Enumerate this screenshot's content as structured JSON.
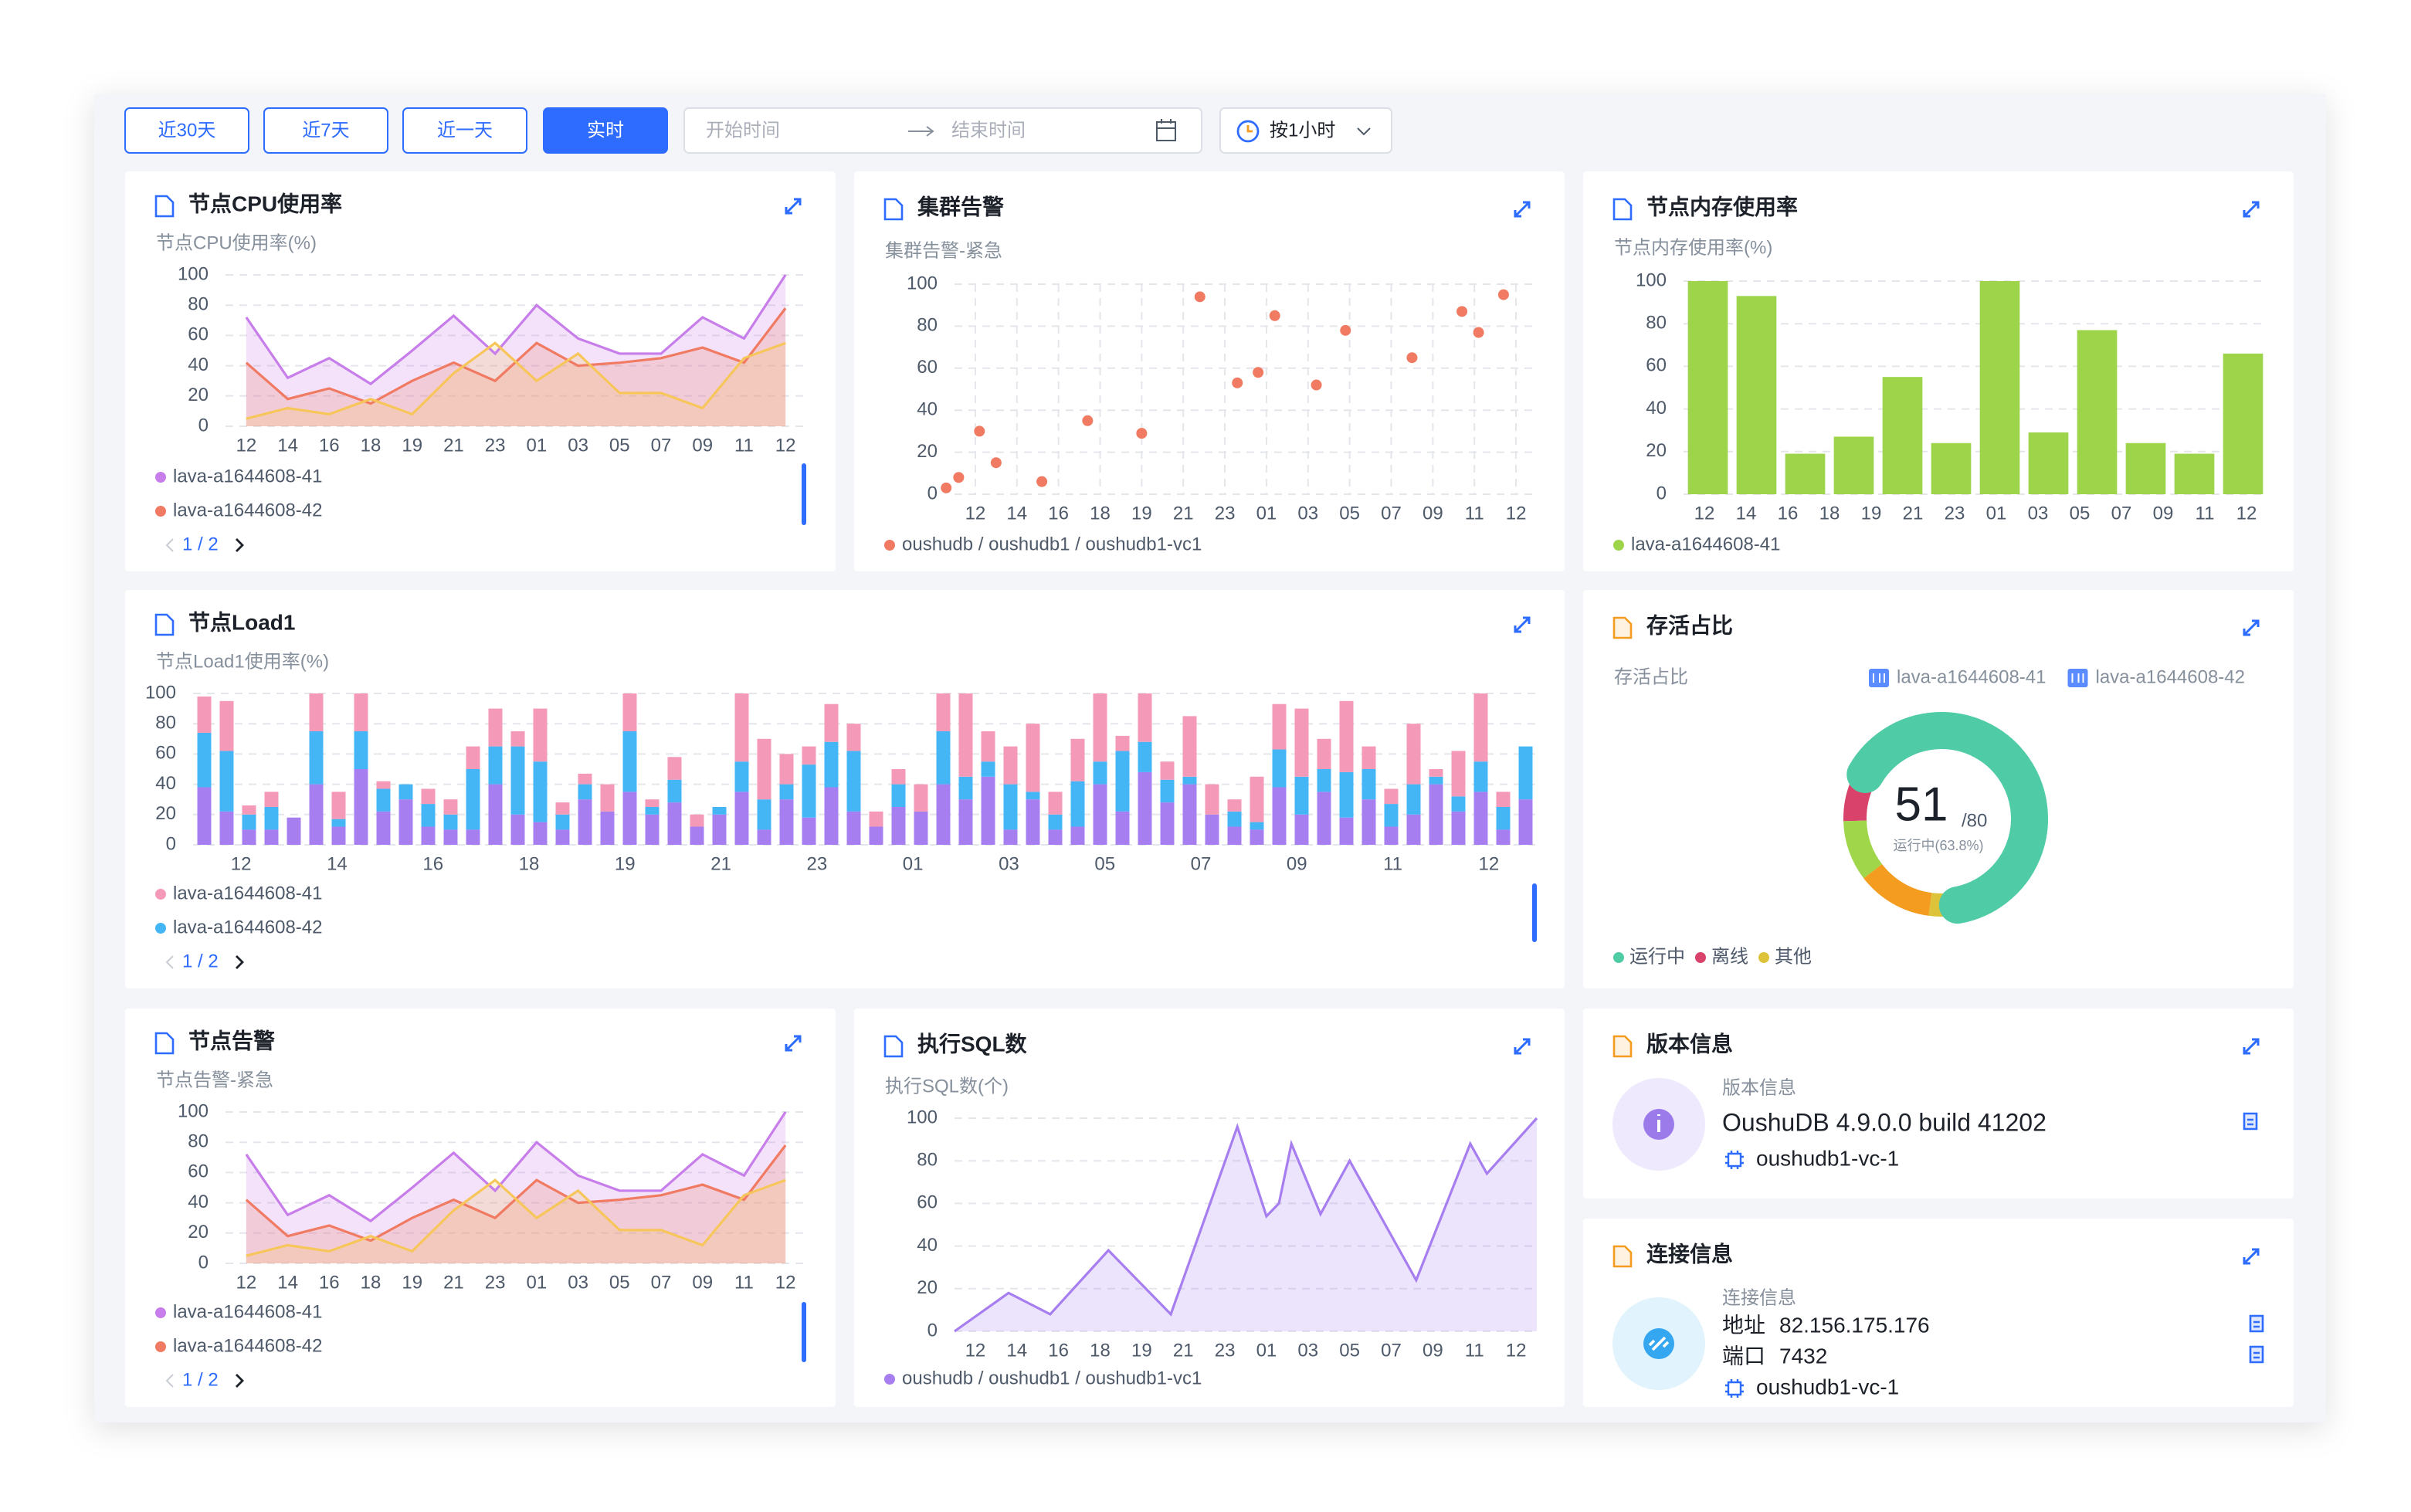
{
  "toolbar": {
    "ranges": [
      "近30天",
      "近7天",
      "近一天",
      "实时"
    ],
    "active_range": 3,
    "date_range": {
      "start": "开始时间",
      "end": "结束时间"
    },
    "granularity": "按1小时"
  },
  "chart_data": [
    {
      "type": "line",
      "area": true,
      "title": "节点CPU使用率",
      "subtitle": "节点CPU使用率(%)",
      "categories": [
        "12",
        "14",
        "16",
        "18",
        "19",
        "21",
        "23",
        "01",
        "03",
        "05",
        "07",
        "09",
        "11",
        "12"
      ],
      "series": [
        {
          "name": "lava-a1644608-41",
          "color": "#c77dea",
          "values": [
            72,
            32,
            45,
            28,
            50,
            73,
            48,
            80,
            58,
            48,
            48,
            72,
            58,
            100
          ]
        },
        {
          "name": "lava-a1644608-42",
          "color": "#f07a62",
          "values": [
            42,
            18,
            25,
            15,
            30,
            42,
            30,
            55,
            40,
            42,
            45,
            52,
            42,
            78
          ]
        },
        {
          "color": "#f7c65a",
          "values": [
            5,
            12,
            8,
            18,
            8,
            35,
            55,
            30,
            48,
            22,
            22,
            12,
            45,
            55
          ]
        }
      ],
      "ylim": [
        0,
        100
      ],
      "yticks": [
        0,
        20,
        40,
        60,
        80,
        100
      ],
      "grid": true,
      "pager": "1 / 2"
    },
    {
      "type": "scatter",
      "title": "集群告警",
      "subtitle": "集群告警-紧急",
      "x": [
        -0.7,
        -0.4,
        0.1,
        0.5,
        1.6,
        2.7,
        4.0,
        5.4,
        6.3,
        6.8,
        7.2,
        8.2,
        8.9,
        10.5,
        11.7,
        12.1,
        12.7
      ],
      "xlim": [
        -0.5,
        13.5
      ],
      "xticks": [
        {
          "value": 0,
          "label": "12"
        },
        {
          "value": 1,
          "label": "14"
        },
        {
          "value": 2,
          "label": "16"
        },
        {
          "value": 3,
          "label": "18"
        },
        {
          "value": 4,
          "label": "19"
        },
        {
          "value": 5,
          "label": "21"
        },
        {
          "value": 6,
          "label": "23"
        },
        {
          "value": 7,
          "label": "01"
        },
        {
          "value": 8,
          "label": "03"
        },
        {
          "value": 9,
          "label": "05"
        },
        {
          "value": 10,
          "label": "07"
        },
        {
          "value": 11,
          "label": "09"
        },
        {
          "value": 12,
          "label": "11"
        },
        {
          "value": 13,
          "label": "12"
        }
      ],
      "series": [
        {
          "name": "oushudb / oushudb1 / oushudb1-vc1",
          "color": "#f07a62",
          "values": [
            3,
            8,
            30,
            15,
            6,
            35,
            29,
            94,
            53,
            58,
            85,
            52,
            78,
            65,
            87,
            77,
            95
          ]
        }
      ],
      "ylim": [
        0,
        100
      ],
      "yticks": [
        0,
        20,
        40,
        60,
        80,
        100
      ],
      "grid": true,
      "xgrid": true
    },
    {
      "type": "bar",
      "title": "节点内存使用率",
      "subtitle": "节点内存使用率(%)",
      "x_labels": [
        "12",
        "14",
        "16",
        "18",
        "19",
        "21",
        "23",
        "01",
        "03",
        "05",
        "07",
        "09",
        "11",
        "12"
      ],
      "series": [
        {
          "name": "lava-a1644608-41",
          "color": "#9dd44a",
          "values": [
            100,
            93,
            19,
            27,
            55,
            24,
            100,
            29,
            77,
            24,
            19,
            66
          ]
        }
      ],
      "ylim": [
        0,
        100
      ],
      "yticks": [
        0,
        20,
        40,
        60,
        80,
        100
      ],
      "grid": true
    },
    {
      "type": "bar",
      "stacked": true,
      "title": "节点Load1",
      "subtitle": "节点Load1使用率(%)",
      "x_labels": [
        "12",
        "14",
        "16",
        "18",
        "19",
        "21",
        "23",
        "01",
        "03",
        "05",
        "07",
        "09",
        "11",
        "12"
      ],
      "series": [
        {
          "name": "lava-a1644608-41",
          "color": "#f599b8",
          "values": [
            24,
            33,
            6,
            10,
            0,
            25,
            18,
            25,
            5,
            0,
            10,
            10,
            15,
            25,
            10,
            35,
            8,
            7,
            18,
            25,
            5,
            15,
            8,
            0,
            45,
            40,
            20,
            12,
            25,
            18,
            10,
            10,
            18,
            25,
            55,
            20,
            25,
            45,
            15,
            28,
            45,
            10,
            32,
            12,
            40,
            20,
            8,
            30,
            30,
            45,
            20,
            47,
            15,
            10,
            40,
            5,
            30,
            45,
            10,
            0
          ]
        },
        {
          "name": "lava-a1644608-42",
          "color": "#45b6f5",
          "values": [
            36,
            40,
            10,
            15,
            0,
            35,
            5,
            25,
            15,
            10,
            15,
            10,
            40,
            25,
            45,
            40,
            10,
            10,
            0,
            40,
            5,
            15,
            0,
            5,
            20,
            20,
            10,
            35,
            30,
            40,
            0,
            15,
            0,
            35,
            15,
            10,
            30,
            5,
            10,
            30,
            15,
            40,
            20,
            15,
            5,
            0,
            10,
            5,
            25,
            25,
            15,
            30,
            20,
            15,
            20,
            5,
            10,
            20,
            15,
            35
          ]
        },
        {
          "color": "#a77ef0",
          "values": [
            38,
            22,
            10,
            10,
            18,
            40,
            12,
            50,
            22,
            30,
            12,
            10,
            10,
            40,
            20,
            15,
            10,
            30,
            22,
            35,
            20,
            28,
            12,
            20,
            35,
            10,
            30,
            18,
            38,
            22,
            12,
            25,
            22,
            40,
            30,
            45,
            10,
            30,
            10,
            12,
            40,
            22,
            48,
            28,
            40,
            20,
            12,
            10,
            38,
            20,
            35,
            18,
            30,
            12,
            20,
            40,
            22,
            35,
            10,
            30
          ]
        }
      ],
      "ylim": [
        0,
        100
      ],
      "yticks": [
        0,
        20,
        40,
        60,
        80,
        100
      ],
      "grid": true,
      "pager": "1 / 2"
    },
    {
      "type": "pie",
      "donut": true,
      "title": "存活占比",
      "subtitle": "存活占比",
      "filters": [
        "lava-a1644608-41",
        "lava-a1644608-42"
      ],
      "slices": [
        {
          "name": "运行中",
          "value": 51,
          "color": "#4fcba6"
        },
        {
          "name": "离线",
          "value": 7,
          "color": "#d9436b"
        },
        {
          "value": 8,
          "color": "#9fd64a"
        },
        {
          "value": 10,
          "color": "#f39c1f"
        },
        {
          "name": "其他",
          "value": 4,
          "color": "#dcc33a"
        }
      ],
      "center_total": "/80",
      "center_caption": "运行中(63.8%)"
    },
    {
      "type": "line",
      "area": true,
      "title": "节点告警",
      "subtitle": "节点告警-紧急",
      "categories": [
        "12",
        "14",
        "16",
        "18",
        "19",
        "21",
        "23",
        "01",
        "03",
        "05",
        "07",
        "09",
        "11",
        "12"
      ],
      "series": [
        {
          "name": "lava-a1644608-41",
          "color": "#c77dea",
          "values": [
            72,
            32,
            45,
            28,
            50,
            73,
            48,
            80,
            58,
            48,
            48,
            72,
            58,
            100
          ]
        },
        {
          "name": "lava-a1644608-42",
          "color": "#f07a62",
          "values": [
            42,
            18,
            25,
            15,
            30,
            42,
            30,
            55,
            40,
            42,
            45,
            52,
            42,
            78
          ]
        },
        {
          "color": "#f7c65a",
          "values": [
            5,
            12,
            8,
            18,
            8,
            35,
            55,
            30,
            48,
            22,
            22,
            12,
            45,
            55
          ]
        }
      ],
      "ylim": [
        0,
        100
      ],
      "yticks": [
        0,
        20,
        40,
        60,
        80,
        100
      ],
      "grid": true,
      "pager": "1 / 2"
    },
    {
      "type": "line",
      "area": true,
      "title": "执行SQL数",
      "subtitle": "执行SQL数(个)",
      "x": [
        -0.5,
        0.8,
        1.8,
        3.2,
        4.7,
        6.3,
        7.0,
        7.3,
        7.6,
        8.3,
        9.0,
        10.6,
        11.9,
        12.3,
        13.5
      ],
      "xlim": [
        -0.5,
        13.5
      ],
      "xticks": [
        {
          "value": 0,
          "label": "12"
        },
        {
          "value": 1,
          "label": "14"
        },
        {
          "value": 2,
          "label": "16"
        },
        {
          "value": 3,
          "label": "18"
        },
        {
          "value": 4,
          "label": "19"
        },
        {
          "value": 5,
          "label": "21"
        },
        {
          "value": 6,
          "label": "23"
        },
        {
          "value": 7,
          "label": "01"
        },
        {
          "value": 8,
          "label": "03"
        },
        {
          "value": 9,
          "label": "05"
        },
        {
          "value": 10,
          "label": "07"
        },
        {
          "value": 11,
          "label": "09"
        },
        {
          "value": 12,
          "label": "11"
        },
        {
          "value": 13,
          "label": "12"
        }
      ],
      "series": [
        {
          "name": "oushudb / oushudb1 / oushudb1-vc1",
          "color": "#a77ef0",
          "values": [
            0,
            18,
            8,
            38,
            8,
            96,
            54,
            60,
            88,
            55,
            80,
            24,
            88,
            74,
            100
          ]
        }
      ],
      "ylim": [
        0,
        100
      ],
      "yticks": [
        0,
        20,
        40,
        60,
        80,
        100
      ],
      "grid": true
    }
  ],
  "version": {
    "title": "版本信息",
    "label": "版本信息",
    "version": "OushuDB 4.9.0.0 build 41202",
    "cluster": "oushudb1-vc-1"
  },
  "connection": {
    "title": "连接信息",
    "label": "连接信息",
    "address_label": "地址",
    "address": "82.156.175.176",
    "port_label": "端口",
    "port": "7432",
    "cluster": "oushudb1-vc-1"
  }
}
